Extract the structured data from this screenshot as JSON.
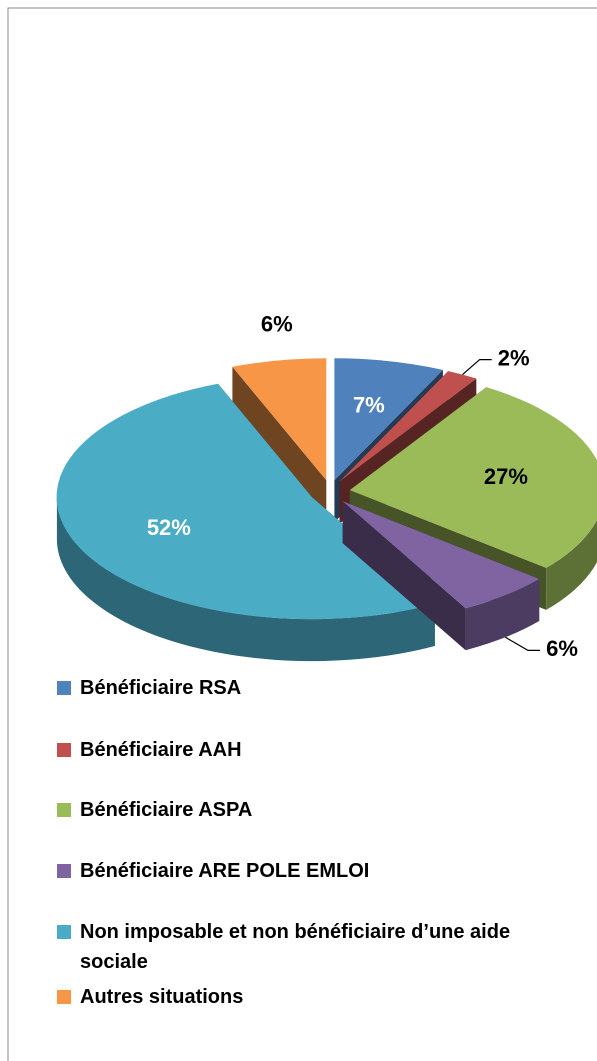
{
  "chart_data": {
    "type": "pie3d",
    "categories": [
      "Bénéficiaire RSA",
      "Bénéficiaire AAH",
      "Bénéficiaire ASPA",
      "Bénéficiaire ARE POLE EMLOI",
      "Non imposable et non bénéficiaire d’une aide sociale",
      "Autres situations"
    ],
    "values": [
      7,
      2,
      27,
      6,
      52,
      6
    ],
    "value_labels": [
      "7%",
      "2%",
      "27%",
      "6%",
      "52%",
      "6%"
    ],
    "colors": [
      "#4f81bd",
      "#c0504d",
      "#9bbb59",
      "#8064a2",
      "#4bacc6",
      "#f79646"
    ],
    "legend": "bottom"
  }
}
